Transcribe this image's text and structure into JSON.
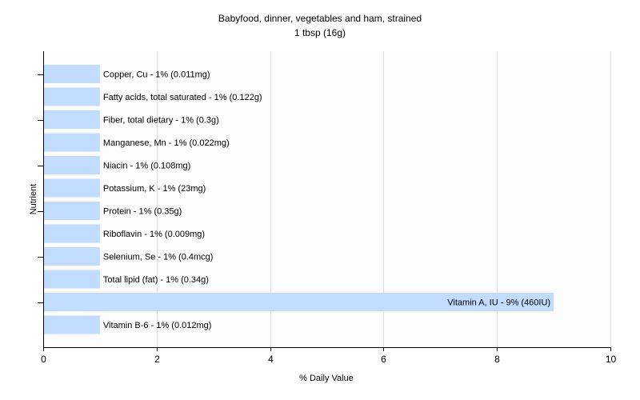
{
  "chart_data": {
    "type": "bar",
    "orientation": "horizontal",
    "title": "Babyfood, dinner, vegetables and ham, strained",
    "subtitle": "1 tbsp (16g)",
    "xlabel": "% Daily Value",
    "ylabel": "Nutrient",
    "xlim": [
      0,
      10
    ],
    "xticks": [
      "0",
      "2",
      "4",
      "6",
      "8",
      "10"
    ],
    "grid": true,
    "bar_color": "#c2dcff",
    "categories": [
      "Copper, Cu",
      "Fatty acids, total saturated",
      "Fiber, total dietary",
      "Manganese, Mn",
      "Niacin",
      "Potassium, K",
      "Protein",
      "Riboflavin",
      "Selenium, Se",
      "Total lipid (fat)",
      "Vitamin A, IU",
      "Vitamin B-6"
    ],
    "values": [
      1,
      1,
      1,
      1,
      1,
      1,
      1,
      1,
      1,
      1,
      9,
      1
    ],
    "labels": [
      "Copper, Cu - 1% (0.011mg)",
      "Fatty acids, total saturated - 1% (0.122g)",
      "Fiber, total dietary - 1% (0.3g)",
      "Manganese, Mn - 1% (0.022mg)",
      "Niacin - 1% (0.108mg)",
      "Potassium, K - 1% (23mg)",
      "Protein - 1% (0.35g)",
      "Riboflavin - 1% (0.009mg)",
      "Selenium, Se - 1% (0.4mcg)",
      "Total lipid (fat) - 1% (0.34g)",
      "Vitamin A, IU - 9% (460IU)",
      "Vitamin B-6 - 1% (0.012mg)"
    ]
  }
}
